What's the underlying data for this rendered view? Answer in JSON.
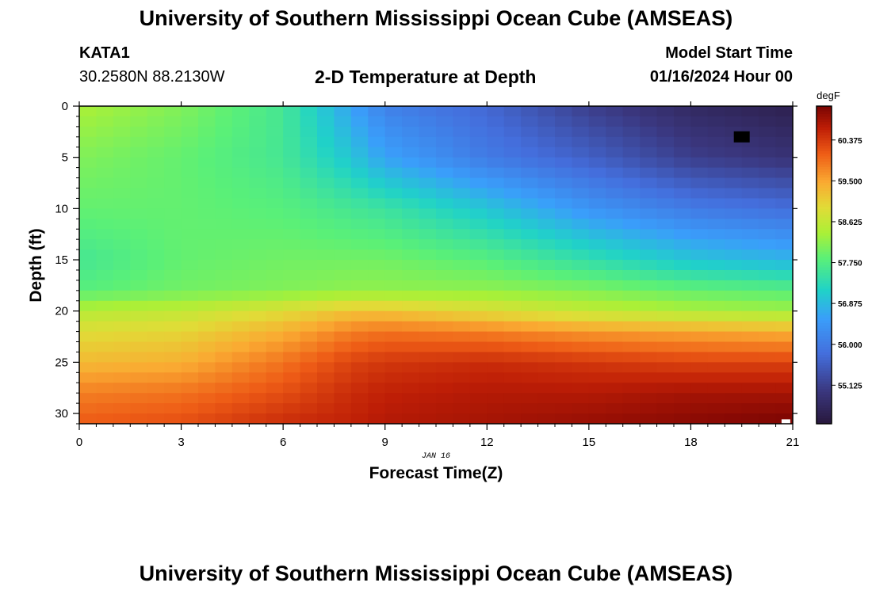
{
  "header": {
    "title": "University of Southern Mississippi Ocean Cube (AMSEAS)",
    "station": "KATA1",
    "coords": "30.2580N  88.2130W",
    "model_start_label": "Model Start Time",
    "model_start_value": "01/16/2024 Hour 00"
  },
  "footer": {
    "title": "University of Southern Mississippi Ocean Cube (AMSEAS)"
  },
  "chart_data": {
    "type": "heatmap",
    "title": "2-D Temperature at Depth",
    "xlabel": "Forecast Time(Z)",
    "ylabel": "Depth (ft)",
    "date_label": "JAN 16",
    "xlim": [
      0,
      21
    ],
    "ylim": [
      31,
      0
    ],
    "x_ticks": [
      0,
      3,
      6,
      9,
      12,
      15,
      18,
      21
    ],
    "y_ticks": [
      0,
      5,
      10,
      15,
      20,
      25,
      30
    ],
    "grid": false,
    "colorbar": {
      "units": "degF",
      "range": [
        54.3,
        61.1
      ],
      "ticks": [
        "60.375",
        "59.500",
        "58.625",
        "57.750",
        "56.875",
        "56.000",
        "55.125"
      ],
      "tick_values": [
        60.375,
        59.5,
        58.625,
        57.75,
        56.875,
        56.0,
        55.125
      ]
    },
    "grid_resolution": {
      "hours_step": 0.5,
      "depth_step_ft": 1
    },
    "temperature_profiles_degF": [
      {
        "hour": 0,
        "depth_ft": [
          0,
          5,
          10,
          15,
          18,
          20,
          22,
          25,
          28,
          31
        ],
        "temp": [
          58.4,
          58.1,
          57.9,
          57.6,
          57.8,
          58.5,
          58.9,
          59.3,
          59.8,
          60.1
        ]
      },
      {
        "hour": 3,
        "depth_ft": [
          0,
          5,
          10,
          15,
          18,
          20,
          22,
          25,
          28,
          31
        ],
        "temp": [
          58.1,
          57.9,
          57.9,
          57.9,
          58.0,
          58.6,
          59.0,
          59.4,
          59.9,
          60.2
        ]
      },
      {
        "hour": 6,
        "depth_ft": [
          0,
          5,
          10,
          15,
          18,
          20,
          22,
          25,
          28,
          31
        ],
        "temp": [
          57.6,
          57.6,
          57.8,
          58.0,
          58.1,
          58.9,
          59.4,
          59.9,
          60.2,
          60.5
        ]
      },
      {
        "hour": 8,
        "depth_ft": [
          0,
          5,
          10,
          15,
          18,
          20,
          22,
          25,
          28,
          31
        ],
        "temp": [
          56.6,
          57.0,
          57.6,
          58.0,
          58.2,
          59.2,
          59.8,
          60.3,
          60.5,
          60.6
        ]
      },
      {
        "hour": 9,
        "depth_ft": [
          0,
          5,
          10,
          15,
          18,
          20,
          22,
          25,
          28,
          31
        ],
        "temp": [
          56.1,
          56.6,
          57.5,
          58.0,
          58.2,
          59.2,
          59.9,
          60.4,
          60.6,
          60.7
        ]
      },
      {
        "hour": 12,
        "depth_ft": [
          0,
          5,
          10,
          15,
          18,
          20,
          22,
          25,
          28,
          31
        ],
        "temp": [
          55.7,
          56.0,
          57.0,
          57.8,
          58.2,
          58.9,
          59.8,
          60.5,
          60.7,
          60.8
        ]
      },
      {
        "hour": 15,
        "depth_ft": [
          0,
          5,
          10,
          15,
          18,
          20,
          22,
          25,
          28,
          31
        ],
        "temp": [
          55.1,
          55.6,
          56.4,
          57.4,
          58.1,
          58.6,
          59.6,
          60.4,
          60.7,
          60.9
        ]
      },
      {
        "hour": 18,
        "depth_ft": [
          0,
          5,
          10,
          15,
          18,
          20,
          22,
          25,
          28,
          31
        ],
        "temp": [
          54.7,
          55.1,
          56.0,
          57.0,
          57.9,
          58.4,
          59.5,
          60.3,
          60.8,
          61.0
        ]
      },
      {
        "hour": 21,
        "depth_ft": [
          0,
          5,
          10,
          15,
          18,
          20,
          22,
          25,
          28,
          31
        ],
        "temp": [
          54.5,
          54.9,
          55.8,
          56.8,
          57.8,
          58.3,
          59.4,
          60.3,
          60.8,
          61.1
        ]
      }
    ],
    "annotations": [
      {
        "type": "missing-data-cell",
        "hour": 19.5,
        "depth_ft": 3,
        "color": "#000000"
      },
      {
        "type": "missing-data-cell",
        "hour": 20.8,
        "depth_ft": 30.8,
        "color": "#ffffff"
      }
    ]
  }
}
